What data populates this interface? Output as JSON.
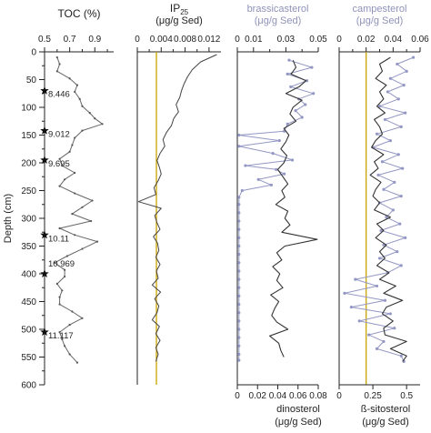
{
  "chart_data": {
    "type": "line",
    "y_axis": {
      "label": "Depth (cm)",
      "range": [
        0,
        600
      ],
      "ticks": [
        "0",
        "50",
        "100",
        "150",
        "200",
        "250",
        "300",
        "350",
        "400",
        "450",
        "500",
        "550",
        "600"
      ]
    },
    "panels": [
      {
        "id": "toc",
        "title": "TOC (%)",
        "range": [
          0.5,
          1.05
        ],
        "ticks": [
          {
            "value": 0.5,
            "label": "0.5"
          },
          {
            "value": 0.7,
            "label": "0.7"
          },
          {
            "value": 0.9,
            "label": "0.9"
          }
        ],
        "minor_ticks": [
          0.6,
          0.8,
          1.0
        ],
        "series": [
          {
            "color": "#666666",
            "depth": [
              10,
              22,
              35,
              48,
              60,
              72,
              85,
              98,
              110,
              120,
              130,
              142,
              155,
              168,
              180,
              193,
              205,
              218,
              230,
              242,
              255,
              268,
              280,
              292,
              305,
              318,
              330,
              342,
              355,
              368,
              380,
              393,
              405,
              418,
              430,
              442,
              455,
              468,
              480,
              492,
              505,
              518,
              530,
              545,
              560
            ],
            "values": [
              0.6,
              0.62,
              0.6,
              0.7,
              0.76,
              0.74,
              0.78,
              0.8,
              0.86,
              0.9,
              0.96,
              0.8,
              0.74,
              0.72,
              0.7,
              0.62,
              0.64,
              0.74,
              0.66,
              0.62,
              0.74,
              0.88,
              0.8,
              0.72,
              0.87,
              0.62,
              0.74,
              0.92,
              0.8,
              0.68,
              0.58,
              0.66,
              0.66,
              0.6,
              0.64,
              0.62,
              0.62,
              0.72,
              0.8,
              0.7,
              0.62,
              0.64,
              0.66,
              0.7,
              0.76
            ]
          }
        ]
      },
      {
        "id": "ip25",
        "title": "IP25",
        "title_main": "IP",
        "title_sub": "25",
        "unit": "(μg/g Sed)",
        "range": [
          0,
          0.014
        ],
        "ticks": [
          {
            "value": 0,
            "label": "0"
          },
          {
            "value": 0.004,
            "label": "0.004"
          },
          {
            "value": 0.008,
            "label": "0.008"
          },
          {
            "value": 0.012,
            "label": "0.012"
          }
        ],
        "minor_ticks": [
          0.002,
          0.006,
          0.01
        ],
        "reference_value": 0.0032,
        "reference_color": "#c8a400",
        "series": [
          {
            "color": "#444444",
            "depth": [
              5,
              18,
              32,
              45,
              58,
              70,
              82,
              95,
              108,
              120,
              133,
              145,
              158,
              170,
              183,
              196,
              208,
              220,
              232,
              245,
              257,
              270,
              282,
              295,
              308,
              320,
              333,
              345,
              358,
              370,
              383,
              395,
              408,
              420,
              433,
              445,
              458,
              470,
              483,
              495,
              508,
              520,
              533,
              545,
              558
            ],
            "values": [
              0.0133,
              0.0106,
              0.0092,
              0.0084,
              0.0078,
              0.0074,
              0.0071,
              0.0065,
              0.0069,
              0.0061,
              0.0057,
              0.0049,
              0.0043,
              0.0046,
              0.0038,
              0.0033,
              0.0037,
              0.004,
              0.0035,
              0.0028,
              0.0031,
              0.0002,
              0.004,
              0.0029,
              0.0033,
              0.0038,
              0.0027,
              0.0034,
              0.0036,
              0.0031,
              0.0038,
              0.0032,
              0.0035,
              0.0025,
              0.0039,
              0.0029,
              0.0036,
              0.0033,
              0.0025,
              0.0037,
              0.0031,
              0.0038,
              0.0031,
              0.0035,
              0.0031
            ]
          }
        ]
      },
      {
        "id": "sterols_bd",
        "title": "brassicasterol",
        "unit": "(μg/g Sed)",
        "title_color": "#8f92b8",
        "range": [
          0,
          0.05
        ],
        "ticks": [
          {
            "value": 0,
            "label": "0"
          },
          {
            "value": 0.01,
            "label": "0.01"
          },
          {
            "value": 0.03,
            "label": "0.03"
          },
          {
            "value": 0.05,
            "label": "0.05"
          }
        ],
        "minor_ticks": [
          0.02,
          0.04
        ],
        "bottom_title": "dinosterol",
        "bottom_unit": "(μg/g Sed)",
        "bottom_range": [
          0,
          0.08
        ],
        "bottom_ticks": [
          {
            "value": 0,
            "label": "0"
          },
          {
            "value": 0.02,
            "label": "0.02"
          },
          {
            "value": 0.04,
            "label": "0.04"
          },
          {
            "value": 0.06,
            "label": "0.06"
          },
          {
            "value": 0.08,
            "label": "0.08"
          }
        ],
        "series": [
          {
            "name": "brassicasterol",
            "color": "#9397c3",
            "axis": "top",
            "markers": true,
            "depth": [
              15,
              28,
              40,
              52,
              63,
              75,
              85,
              95,
              106,
              118,
              130,
              143,
              150,
              160,
              170,
              183,
              195,
              205,
              212,
              220,
              230,
              240,
              250,
              262,
              275,
              290,
              305,
              320,
              335,
              350,
              365,
              380,
              395,
              410,
              425,
              440,
              455,
              470,
              485,
              500,
              515,
              530,
              545,
              556
            ],
            "values": [
              0.032,
              0.046,
              0.031,
              0.043,
              0.033,
              0.047,
              0.038,
              0.042,
              0.036,
              0.04,
              0.031,
              0.029,
              0.001,
              0.026,
              0.001,
              0.022,
              0.034,
              0.005,
              0.024,
              0.029,
              0.013,
              0.021,
              0.003,
              0.001,
              0.001,
              0.001,
              0.001,
              0.001,
              0.001,
              0.001,
              0.001,
              0.001,
              0.001,
              0.001,
              0.001,
              0.001,
              0.001,
              0.001,
              0.001,
              0.001,
              0.001,
              0.001,
              0.001,
              0.001
            ]
          },
          {
            "name": "dinosterol",
            "color": "#333333",
            "axis": "bottom",
            "markers": false,
            "depth": [
              15,
              28,
              40,
              52,
              63,
              75,
              87,
              100,
              112,
              125,
              138,
              150,
              162,
              175,
              187,
              200,
              212,
              225,
              238,
              250,
              262,
              275,
              287,
              300,
              312,
              325,
              338,
              350,
              362,
              375,
              387,
              400,
              412,
              425,
              438,
              450,
              462,
              475,
              487,
              500,
              512,
              525,
              538,
              550
            ],
            "values": [
              0.055,
              0.058,
              0.053,
              0.068,
              0.061,
              0.048,
              0.064,
              0.055,
              0.052,
              0.058,
              0.046,
              0.051,
              0.048,
              0.043,
              0.049,
              0.046,
              0.04,
              0.045,
              0.05,
              0.044,
              0.047,
              0.038,
              0.05,
              0.047,
              0.052,
              0.044,
              0.079,
              0.047,
              0.039,
              0.044,
              0.035,
              0.042,
              0.039,
              0.045,
              0.033,
              0.041,
              0.037,
              0.034,
              0.039,
              0.05,
              0.032,
              0.041,
              0.043,
              0.046
            ]
          }
        ]
      },
      {
        "id": "sterols_cs",
        "title": "campesterol",
        "unit": "(μg/g Sed)",
        "title_color": "#8f92b8",
        "range": [
          0,
          0.06
        ],
        "ticks": [
          {
            "value": 0,
            "label": "0"
          },
          {
            "value": 0.02,
            "label": "0.02"
          },
          {
            "value": 0.04,
            "label": "0.04"
          },
          {
            "value": 0.06,
            "label": "0.06"
          }
        ],
        "minor_ticks": [
          0.01,
          0.03,
          0.05
        ],
        "bottom_title": "ß-sitosterol",
        "bottom_unit": "(μg/g Sed)",
        "bottom_range": [
          0,
          0.6
        ],
        "bottom_ticks": [
          {
            "value": 0,
            "label": "0"
          },
          {
            "value": 0.25,
            "label": "0.25"
          },
          {
            "value": 0.5,
            "label": "0.5"
          }
        ],
        "reference_value": 0.02,
        "reference_color": "#c8a400",
        "series": [
          {
            "name": "campesterol",
            "color": "#9397c3",
            "axis": "top",
            "markers": true,
            "depth": [
              10,
              22,
              35,
              48,
              60,
              72,
              85,
              98,
              110,
              122,
              135,
              148,
              160,
              172,
              185,
              198,
              210,
              222,
              235,
              248,
              260,
              272,
              285,
              298,
              310,
              322,
              335,
              348,
              360,
              372,
              385,
              398,
              410,
              422,
              435,
              448,
              460,
              472,
              485,
              498,
              510,
              522,
              535,
              548,
              558
            ],
            "values": [
              0.055,
              0.043,
              0.05,
              0.038,
              0.048,
              0.036,
              0.044,
              0.03,
              0.049,
              0.034,
              0.046,
              0.028,
              0.038,
              0.025,
              0.044,
              0.032,
              0.047,
              0.029,
              0.041,
              0.033,
              0.046,
              0.03,
              0.04,
              0.035,
              0.045,
              0.031,
              0.049,
              0.033,
              0.043,
              0.03,
              0.046,
              0.036,
              0.012,
              0.028,
              0.004,
              0.034,
              0.009,
              0.038,
              0.015,
              0.041,
              0.022,
              0.033,
              0.028,
              0.046,
              0.048
            ]
          },
          {
            "name": "ß-sitosterol",
            "color": "#333333",
            "axis": "bottom",
            "markers": false,
            "depth": [
              10,
              22,
              35,
              48,
              60,
              72,
              85,
              98,
              110,
              122,
              135,
              148,
              160,
              172,
              185,
              198,
              210,
              222,
              235,
              248,
              260,
              272,
              285,
              298,
              310,
              322,
              335,
              348,
              360,
              372,
              385,
              398,
              410,
              422,
              435,
              448,
              460,
              472,
              485,
              498,
              510,
              522,
              535,
              548,
              558
            ],
            "values": [
              0.38,
              0.3,
              0.32,
              0.27,
              0.35,
              0.3,
              0.33,
              0.28,
              0.34,
              0.26,
              0.3,
              0.32,
              0.27,
              0.24,
              0.33,
              0.26,
              0.29,
              0.23,
              0.31,
              0.27,
              0.25,
              0.3,
              0.26,
              0.38,
              0.28,
              0.33,
              0.27,
              0.35,
              0.3,
              0.34,
              0.28,
              0.37,
              0.3,
              0.42,
              0.33,
              0.47,
              0.35,
              0.32,
              0.4,
              0.33,
              0.34,
              0.5,
              0.38,
              0.5,
              0.47
            ]
          }
        ]
      }
    ],
    "age_markers": [
      {
        "depth": 70,
        "label": "8.446"
      },
      {
        "depth": 142,
        "label": "9.012"
      },
      {
        "depth": 195,
        "label": "9.695"
      },
      {
        "depth": 330,
        "label": "10.11"
      },
      {
        "depth": 400,
        "label": "10.969"
      },
      {
        "depth": 505,
        "label": "11.117"
      }
    ]
  }
}
